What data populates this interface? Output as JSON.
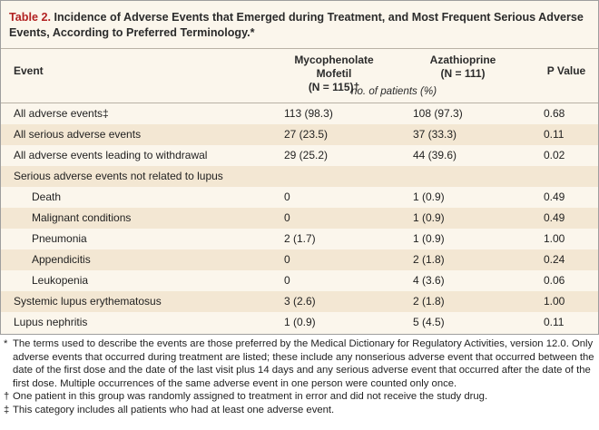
{
  "title": {
    "label": "Table 2.",
    "text": " Incidence of Adverse Events that Emerged during Treatment, and Most Frequent Serious Adverse Events, According to Preferred Terminology.*"
  },
  "header": {
    "event": "Event",
    "mmf_line1": "Mycophenolate Mofetil",
    "mmf_line2": "(N = 115)†",
    "aza_line1": "Azathioprine",
    "aza_line2": "(N = 111)",
    "p": "P Value",
    "subheader": "no. of patients (%)"
  },
  "rows": [
    {
      "event": "All adverse events‡",
      "mmf": "113 (98.3)",
      "aza": "108 (97.3)",
      "p": "0.68",
      "indent": false
    },
    {
      "event": "All serious adverse events",
      "mmf": "27 (23.5)",
      "aza": "37 (33.3)",
      "p": "0.11",
      "indent": false
    },
    {
      "event": "All adverse events leading to withdrawal",
      "mmf": "29 (25.2)",
      "aza": "44 (39.6)",
      "p": "0.02",
      "indent": false
    },
    {
      "event": "Serious adverse events not related to lupus",
      "mmf": "",
      "aza": "",
      "p": "",
      "indent": false
    },
    {
      "event": "Death",
      "mmf": "0",
      "aza": "1 (0.9)",
      "p": "0.49",
      "indent": true
    },
    {
      "event": "Malignant conditions",
      "mmf": "0",
      "aza": "1 (0.9)",
      "p": "0.49",
      "indent": true
    },
    {
      "event": "Pneumonia",
      "mmf": "2 (1.7)",
      "aza": "1 (0.9)",
      "p": "1.00",
      "indent": true
    },
    {
      "event": "Appendicitis",
      "mmf": "0",
      "aza": "2 (1.8)",
      "p": "0.24",
      "indent": true
    },
    {
      "event": "Leukopenia",
      "mmf": "0",
      "aza": "4 (3.6)",
      "p": "0.06",
      "indent": true
    },
    {
      "event": "Systemic lupus erythematosus",
      "mmf": "3 (2.6)",
      "aza": "2 (1.8)",
      "p": "1.00",
      "indent": false
    },
    {
      "event": "Lupus nephritis",
      "mmf": "1 (0.9)",
      "aza": "5 (4.5)",
      "p": "0.11",
      "indent": false
    }
  ],
  "footnotes": [
    {
      "mark": "*",
      "text": "The terms used to describe the events are those preferred by the Medical Dictionary for Regulatory Activities, version 12.0. Only adverse events that occurred during treatment are listed; these include any nonserious adverse event that occurred between the date of the first dose and the date of the last visit plus 14 days and any serious adverse event that occurred after the date of the first dose. Multiple occurrences of the same adverse event in one person were counted only once."
    },
    {
      "mark": "†",
      "text": "One patient in this group was randomly assigned to treatment in error and did not receive the study drug."
    },
    {
      "mark": "‡",
      "text": "This category includes all patients who had at least one adverse event."
    }
  ]
}
